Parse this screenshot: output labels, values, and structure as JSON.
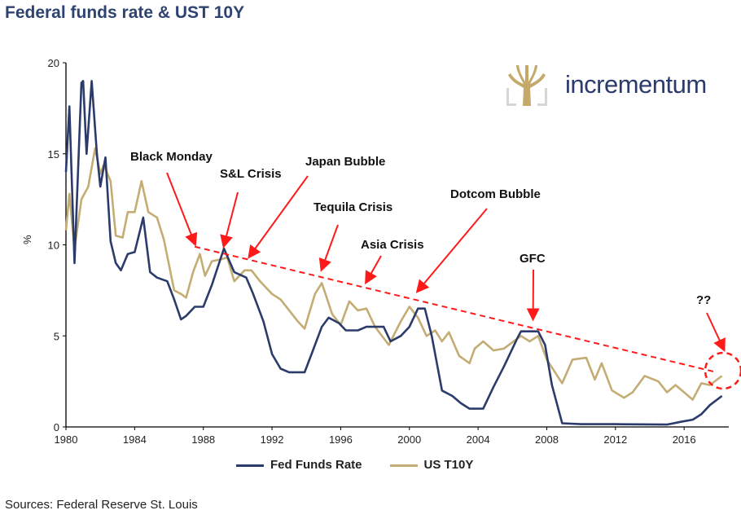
{
  "title": "Federal funds rate & UST 10Y",
  "source": "Sources: Federal Reserve St. Louis",
  "logo": {
    "text": "incrementum"
  },
  "colors": {
    "fed": "#2b3b6b",
    "t10y": "#c4ad74",
    "annotation": "#ff1a1a",
    "title": "#2e4372"
  },
  "chart_data": {
    "type": "line",
    "title": "Federal funds rate & UST 10Y",
    "ylabel": "%",
    "xlabel": "",
    "xlim": [
      1980,
      2018.6
    ],
    "ylim": [
      0,
      20
    ],
    "xticks": [
      "1980",
      "1984",
      "1988",
      "1992",
      "1996",
      "2000",
      "2004",
      "2008",
      "2012",
      "2016"
    ],
    "yticks": [
      "0",
      "5",
      "10",
      "15",
      "20"
    ],
    "legend_position": "bottom",
    "series": [
      {
        "name": "Fed Funds Rate",
        "x": [
          1980.0,
          1980.2,
          1980.5,
          1980.9,
          1981.0,
          1981.2,
          1981.5,
          1981.8,
          1982.0,
          1982.3,
          1982.6,
          1982.9,
          1983.2,
          1983.6,
          1984.0,
          1984.5,
          1984.9,
          1985.3,
          1985.9,
          1986.3,
          1986.7,
          1987.0,
          1987.5,
          1988.0,
          1988.5,
          1989.2,
          1989.8,
          1990.5,
          1990.9,
          1991.5,
          1992.0,
          1992.5,
          1993.0,
          1993.9,
          1994.3,
          1994.9,
          1995.3,
          1995.9,
          1996.3,
          1997.0,
          1997.5,
          1998.5,
          1998.9,
          1999.5,
          2000.0,
          2000.5,
          2000.9,
          2001.3,
          2001.9,
          2002.5,
          2003.0,
          2003.5,
          2004.3,
          2004.9,
          2005.5,
          2006.3,
          2006.5,
          2007.5,
          2007.9,
          2008.3,
          2008.9,
          2010.0,
          2012.0,
          2015.0,
          2015.9,
          2016.5,
          2017.0,
          2017.5,
          2018.2
        ],
        "values": [
          14.0,
          17.6,
          9.0,
          18.9,
          19.0,
          15.0,
          19.0,
          15.0,
          13.2,
          14.8,
          10.2,
          9.0,
          8.6,
          9.5,
          9.6,
          11.5,
          8.5,
          8.2,
          8.0,
          7.0,
          5.9,
          6.1,
          6.6,
          6.6,
          7.8,
          9.8,
          8.5,
          8.2,
          7.3,
          5.8,
          4.0,
          3.2,
          3.0,
          3.0,
          4.0,
          5.5,
          6.0,
          5.7,
          5.3,
          5.3,
          5.5,
          5.5,
          4.7,
          5.0,
          5.5,
          6.5,
          6.5,
          5.0,
          2.0,
          1.7,
          1.3,
          1.0,
          1.0,
          2.2,
          3.3,
          4.9,
          5.25,
          5.25,
          4.5,
          2.3,
          0.2,
          0.15,
          0.15,
          0.13,
          0.3,
          0.4,
          0.7,
          1.2,
          1.7
        ]
      },
      {
        "name": "US T10Y",
        "x": [
          1980.0,
          1980.2,
          1980.5,
          1980.9,
          1981.3,
          1981.7,
          1982.0,
          1982.2,
          1982.6,
          1982.9,
          1983.3,
          1983.6,
          1984.0,
          1984.4,
          1984.8,
          1985.3,
          1985.7,
          1986.3,
          1986.7,
          1987.0,
          1987.4,
          1987.8,
          1988.1,
          1988.5,
          1989.0,
          1989.4,
          1989.8,
          1990.4,
          1990.8,
          1991.3,
          1992.0,
          1992.5,
          1993.5,
          1993.9,
          1994.5,
          1994.9,
          1995.5,
          1996.0,
          1996.5,
          1997.0,
          1997.5,
          1998.0,
          1998.8,
          1999.5,
          2000.0,
          2000.5,
          2001.0,
          2001.5,
          2001.9,
          2002.3,
          2002.9,
          2003.5,
          2003.8,
          2004.3,
          2004.9,
          2005.5,
          2006.5,
          2007.0,
          2007.5,
          2008.0,
          2008.9,
          2009.5,
          2010.3,
          2010.8,
          2011.2,
          2011.8,
          2012.5,
          2013.0,
          2013.7,
          2014.5,
          2015.0,
          2015.5,
          2016.5,
          2017.0,
          2017.5,
          2018.2
        ],
        "values": [
          10.8,
          12.8,
          9.8,
          12.5,
          13.2,
          15.3,
          13.9,
          14.4,
          13.5,
          10.5,
          10.4,
          11.8,
          11.8,
          13.5,
          11.8,
          11.5,
          10.3,
          7.5,
          7.3,
          7.1,
          8.5,
          9.5,
          8.3,
          9.1,
          9.2,
          9.3,
          8.0,
          8.6,
          8.6,
          8.0,
          7.3,
          7.0,
          5.8,
          5.4,
          7.3,
          7.9,
          6.2,
          5.6,
          6.9,
          6.4,
          6.5,
          5.5,
          4.5,
          5.8,
          6.6,
          6.0,
          5.0,
          5.3,
          4.7,
          5.2,
          3.9,
          3.5,
          4.3,
          4.7,
          4.2,
          4.3,
          5.0,
          4.7,
          5.0,
          3.7,
          2.4,
          3.7,
          3.8,
          2.6,
          3.5,
          2.0,
          1.6,
          1.9,
          2.8,
          2.5,
          1.9,
          2.3,
          1.5,
          2.4,
          2.3,
          2.8
        ]
      }
    ],
    "trendline": {
      "x": [
        1987.5,
        2017.9
      ],
      "values": [
        9.9,
        3.0
      ],
      "style": "dashed"
    },
    "annotations": [
      {
        "text": "Black Monday",
        "target": [
          1987.5,
          9.9
        ]
      },
      {
        "text": "S&L Crisis",
        "target": [
          1989.2,
          9.8
        ]
      },
      {
        "text": "Japan Bubble",
        "target": [
          1990.7,
          9.2
        ]
      },
      {
        "text": "Tequila Crisis",
        "target": [
          1994.9,
          8.5
        ]
      },
      {
        "text": "Asia Crisis",
        "target": [
          1997.5,
          7.8
        ]
      },
      {
        "text": "Dotcom Bubble",
        "target": [
          2000.5,
          7.3
        ]
      },
      {
        "text": "GFC",
        "target": [
          2007.2,
          5.8
        ]
      },
      {
        "text": "??",
        "target": [
          2018.3,
          4.1
        ]
      }
    ]
  }
}
